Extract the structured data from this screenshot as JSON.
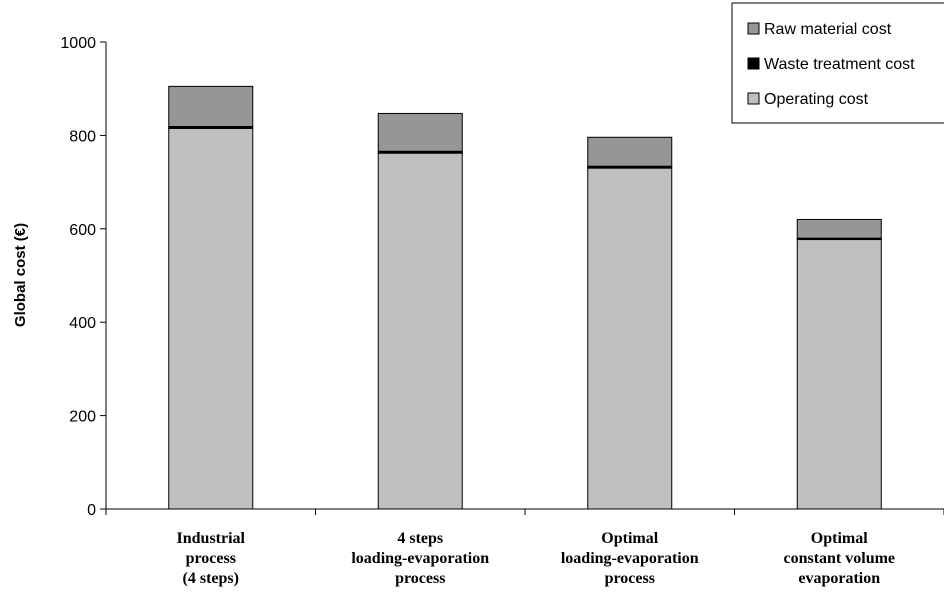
{
  "chart_data": {
    "type": "bar",
    "stacked": true,
    "title": "",
    "xlabel": "",
    "ylabel": "Global cost (€)",
    "ylim": [
      0,
      1000
    ],
    "yticks": [
      "0",
      "200",
      "400",
      "600",
      "800",
      "1000"
    ],
    "grid": false,
    "legend_position": "top-right",
    "categories": [
      [
        "Industrial",
        "process",
        "(4 steps)"
      ],
      [
        "4 steps",
        "loading-evaporation",
        "process"
      ],
      [
        "Optimal",
        "loading-evaporation",
        "process"
      ],
      [
        "Optimal",
        "constant volume",
        "evaporation"
      ]
    ],
    "series": [
      {
        "name": "Operating cost",
        "color": "#c0c0c0",
        "values": [
          815,
          762,
          730,
          577
        ]
      },
      {
        "name": "Waste treatment cost",
        "color": "#000000",
        "values": [
          4,
          4,
          4,
          3
        ]
      },
      {
        "name": "Raw material cost",
        "color": "#969696",
        "values": [
          86,
          81,
          62,
          40
        ]
      }
    ],
    "legend_order": [
      "Raw material cost",
      "Waste treatment cost",
      "Operating cost"
    ]
  }
}
